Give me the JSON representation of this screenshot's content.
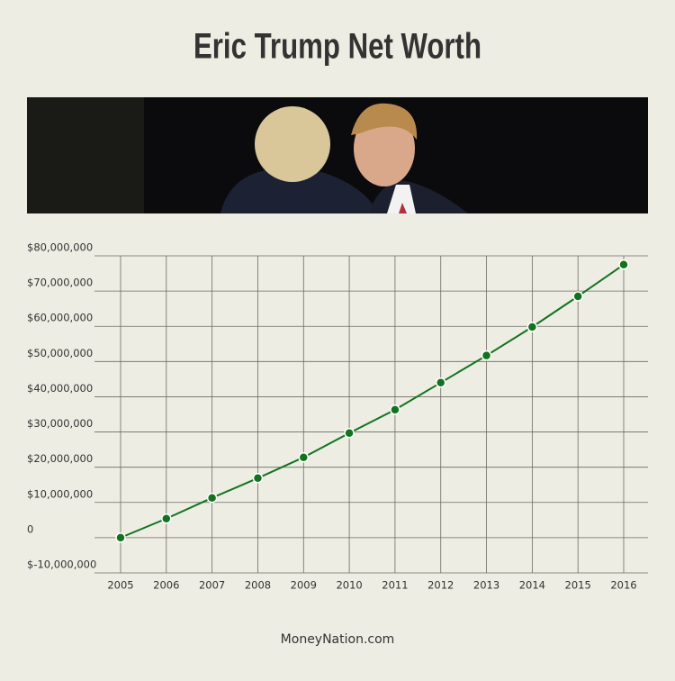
{
  "chart_data": {
    "type": "line",
    "title": "Eric Trump Net Worth",
    "x": [
      2005,
      2006,
      2007,
      2008,
      2009,
      2010,
      2011,
      2012,
      2013,
      2014,
      2015,
      2016
    ],
    "xlim": [
      2005,
      2016
    ],
    "xticks": [
      2005,
      2006,
      2007,
      2008,
      2009,
      2010,
      2011,
      2012,
      2013,
      2014,
      2015,
      2016
    ],
    "series": [
      {
        "color": "#12731f",
        "values": [
          0,
          5400000,
          11300000,
          16900000,
          22800000,
          29700000,
          36300000,
          44000000,
          51700000,
          59800000,
          68500000,
          77500000
        ]
      }
    ],
    "ylim": [
      -10000000,
      80000000
    ],
    "yticks": [
      {
        "value": -10000000,
        "label": "$-10,000,000"
      },
      0,
      {
        "value": 10000000,
        "label": "$10,000,000"
      },
      {
        "value": 20000000,
        "label": "$20,000,000"
      },
      {
        "value": 30000000,
        "label": "$30,000,000"
      },
      {
        "value": 40000000,
        "label": "$40,000,000"
      },
      {
        "value": 50000000,
        "label": "$50,000,000"
      },
      {
        "value": 60000000,
        "label": "$60,000,000"
      },
      {
        "value": 70000000,
        "label": "$70,000,000"
      },
      {
        "value": 80000000,
        "label": "$80,000,000"
      }
    ],
    "grid": true,
    "footer": "MoneyNation.com"
  }
}
